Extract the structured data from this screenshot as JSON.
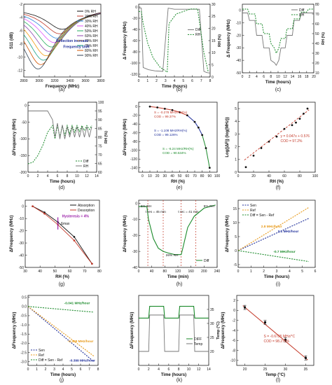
{
  "figure": {
    "panels": [
      {
        "id": "a",
        "label": "(a)"
      },
      {
        "id": "b",
        "label": "(b)"
      },
      {
        "id": "c",
        "label": "(c)"
      },
      {
        "id": "d",
        "label": "(d)"
      },
      {
        "id": "e",
        "label": "(e)"
      },
      {
        "id": "f",
        "label": "(f)"
      },
      {
        "id": "g",
        "label": "(g)"
      },
      {
        "id": "h",
        "label": "(h)"
      },
      {
        "id": "i",
        "label": "(i)"
      },
      {
        "id": "j",
        "label": "(j)"
      },
      {
        "id": "k",
        "label": "(k)"
      },
      {
        "id": "l",
        "label": "(l)"
      }
    ]
  },
  "colors": {
    "green": "#1a8a2a",
    "gray": "#777777",
    "blue": "#1f2f9a",
    "orange": "#e89a1a",
    "red": "#c43a2a",
    "purple": "#9a1fa8",
    "black": "#111111"
  },
  "chart_data": [
    {
      "id": "a",
      "type": "line",
      "xlabel": "Frequency (MHz)",
      "ylabel": "S11 (dB)",
      "xlim": [
        2800,
        3800
      ],
      "ylim": [
        -13,
        -2
      ],
      "xticks": [
        "2800",
        "3000",
        "3200",
        "3400",
        "3600",
        "3800"
      ],
      "yticks": [
        "-2",
        "-4",
        "-6",
        "-8",
        "-10",
        "-12"
      ],
      "legend": [
        "0% RH",
        "20% RH",
        "30% RH",
        "40% RH",
        "50% RH",
        "60% RH",
        "70% RH",
        "75% RH",
        "80% RH",
        "90% RH"
      ],
      "annotations": [
        "Reflection increase",
        "Frequency shift"
      ],
      "series_minima": [
        {
          "name": "0% RH",
          "x": 3300,
          "y": -5.8
        },
        {
          "name": "90% RH",
          "x": 2985,
          "y": -11.8
        }
      ]
    },
    {
      "id": "b",
      "type": "line",
      "xlabel": "Time (hours)",
      "ylabel": "Δ Frequency (MHz)",
      "y2label": "RH (%)",
      "xlim": [
        0,
        8
      ],
      "ylim": [
        -125,
        5
      ],
      "y2lim": [
        0,
        30
      ],
      "xticks": [
        "0",
        "1",
        "2",
        "3",
        "4",
        "5",
        "6",
        "7",
        "8"
      ],
      "yticks": [
        "0",
        "-20",
        "-40",
        "-60",
        "-80",
        "-100",
        "-120"
      ],
      "y2ticks": [
        "0",
        "5",
        "10",
        "15",
        "20",
        "25",
        "30"
      ],
      "legend": [
        "Diff",
        "RH"
      ],
      "series": [
        {
          "name": "Diff",
          "x": [
            0,
            0.3,
            0.5,
            1.1,
            1.8,
            2.7,
            3.3,
            4.0,
            4.6,
            5.4,
            6.2,
            6.8,
            7.3,
            7.6,
            8.0
          ],
          "y": [
            -2,
            -2,
            -108,
            -112,
            -114,
            -115,
            -2,
            -4,
            -4,
            -4,
            -4,
            -4,
            -115,
            -117,
            -118
          ]
        },
        {
          "name": "RH",
          "x": [
            0,
            0.3,
            0.5,
            1.0,
            1.6,
            2.4,
            3.2,
            3.4,
            4.2,
            5.0,
            5.8,
            6.6,
            7.3,
            7.8
          ],
          "y": [
            27,
            27,
            22,
            14,
            8,
            4,
            2,
            22,
            26,
            27,
            28,
            28,
            10,
            2
          ]
        }
      ]
    },
    {
      "id": "c",
      "type": "line",
      "xlabel": "Time (hours)",
      "ylabel": "Δ Frequency (MHz)",
      "y2label": "RH (%)",
      "xlim": [
        0,
        20
      ],
      "ylim": [
        -50,
        5
      ],
      "y2lim": [
        10,
        80
      ],
      "xticks": [
        "0",
        "2",
        "4",
        "6",
        "8",
        "10",
        "12",
        "14",
        "16",
        "18",
        "20"
      ],
      "yticks": [
        "0",
        "-10",
        "-20",
        "-30",
        "-40",
        "-50"
      ],
      "y2ticks": [
        "10",
        "20",
        "30",
        "40",
        "50",
        "60",
        "70",
        "80"
      ],
      "legend": [
        "Diff",
        "RH"
      ],
      "series": [
        {
          "name": "Diff",
          "x": [
            0,
            1.5,
            2,
            3.5,
            4,
            5.5,
            6,
            7.5,
            8,
            9,
            9.5,
            10.2,
            10.8,
            12,
            12.5,
            14,
            14.5,
            16,
            16.5,
            18,
            18.5,
            20
          ],
          "y": [
            -2,
            -2,
            -8,
            -8,
            -20,
            -20,
            -30,
            -30,
            -40,
            -42,
            -44,
            -40,
            -30,
            -30,
            -20,
            -20,
            -8,
            -8,
            -2,
            -2,
            -2,
            -2
          ]
        },
        {
          "name": "RH",
          "x": [
            0,
            1.5,
            2,
            3.5,
            4,
            5.5,
            6,
            7.5,
            8,
            9,
            9.5,
            10.2,
            10.8,
            12,
            12.5,
            14,
            14.5,
            16,
            16.5,
            18,
            18.5,
            20
          ],
          "y": [
            75,
            75,
            70,
            70,
            60,
            60,
            50,
            50,
            40,
            35,
            30,
            35,
            45,
            45,
            55,
            55,
            65,
            65,
            72,
            72,
            75,
            75
          ]
        }
      ]
    },
    {
      "id": "d",
      "type": "line",
      "xlabel": "Time (hours)",
      "ylabel": "ΔFrequency (MHz)",
      "y2label": "RH (%)",
      "xlim": [
        0,
        14
      ],
      "ylim": [
        -200,
        10
      ],
      "y2lim": [
        60,
        100
      ],
      "xticks": [
        "0",
        "2",
        "4",
        "6",
        "8",
        "10",
        "12",
        "14"
      ],
      "yticks": [
        "0",
        "-50",
        "-100",
        "-150",
        "-200"
      ],
      "y2ticks": [
        "60",
        "65",
        "70",
        "75",
        "80",
        "85",
        "90",
        "95",
        "100"
      ],
      "legend": [
        "Diff",
        "RH"
      ],
      "series": [
        {
          "name": "Diff",
          "x": [
            0,
            1,
            2,
            3,
            4,
            5,
            5.5,
            6,
            6.5,
            7,
            7.5,
            8,
            8.5,
            9,
            9.5,
            10,
            10.5,
            11,
            11.5,
            12,
            12.5,
            13
          ],
          "y": [
            -175,
            -170,
            -150,
            -120,
            -80,
            -60,
            -100,
            -60,
            -95,
            -60,
            -90,
            -60,
            -85,
            -60,
            -80,
            -60,
            -78,
            -60,
            -75,
            -60,
            -72,
            -60
          ]
        },
        {
          "name": "RH",
          "x": [
            0,
            1,
            2,
            3,
            4,
            5,
            5.5,
            6,
            6.5,
            7,
            7.5,
            8,
            8.5,
            9,
            9.5,
            10,
            10.5,
            11,
            11.5,
            12,
            12.5,
            13
          ],
          "y": [
            95,
            95,
            95,
            95,
            95,
            90,
            80,
            88,
            79,
            87,
            79,
            86,
            80,
            86,
            80,
            86,
            80,
            86,
            80,
            86,
            80,
            86
          ]
        }
      ]
    },
    {
      "id": "e",
      "type": "scatter",
      "xlabel": "RH (%)",
      "ylabel": "ΔFrequency (MHz)",
      "xlim": [
        -5,
        100
      ],
      "ylim": [
        -150,
        10
      ],
      "xticks": [
        "0",
        "10",
        "20",
        "30",
        "40",
        "50",
        "60",
        "70",
        "80",
        "90",
        "100"
      ],
      "yticks": [
        "0",
        "-20",
        "-40",
        "-60",
        "-80",
        "-100",
        "-120",
        "-140"
      ],
      "annotations": [
        "S = -0.278 MHz/RH(%)",
        "COD = 99.37%",
        "S = -1.108 MHz/RH(%)",
        "COD = 99.126%",
        "S = -6.24 MHz/RH(%)",
        "COD = 90.534%"
      ],
      "x": [
        10,
        20,
        30,
        40,
        50,
        60,
        70,
        75,
        80,
        85,
        90
      ],
      "y": [
        0,
        -2,
        -5,
        -8,
        -13,
        -20,
        -35,
        -48,
        -65,
        -95,
        -140
      ]
    },
    {
      "id": "f",
      "type": "scatter",
      "xlabel": "RH (%)",
      "ylabel": "Log(|ΔF|) (log(MHz))",
      "xlim": [
        0,
        100
      ],
      "ylim": [
        0,
        5.5
      ],
      "xticks": [
        "0",
        "20",
        "40",
        "60",
        "80",
        "100"
      ],
      "yticks": [
        "0",
        "1",
        "2",
        "3",
        "4",
        "5"
      ],
      "annotations": [
        "y = 0.047x + 0.576",
        "COD = 97.2%"
      ],
      "x": [
        10,
        20,
        30,
        40,
        50,
        60,
        70,
        75,
        80,
        85,
        90
      ],
      "y": [
        0.4,
        1.3,
        1.9,
        2.4,
        2.8,
        3.4,
        3.7,
        3.9,
        4.2,
        4.6,
        5.0
      ]
    },
    {
      "id": "g",
      "type": "line",
      "xlabel": "RH (%)",
      "ylabel": "ΔFrequency (MHz)",
      "xlim": [
        30,
        80
      ],
      "ylim": [
        -50,
        5
      ],
      "xticks": [
        "30",
        "40",
        "50",
        "60",
        "70",
        "80"
      ],
      "yticks": [
        "0",
        "-10",
        "-20",
        "-30",
        "-40",
        "-50"
      ],
      "legend": [
        "Absorption",
        "Desorption"
      ],
      "annotations": [
        "Δmax",
        "Hysteresis = 4%"
      ],
      "series": [
        {
          "name": "Absorption",
          "x": [
            35,
            43,
            52,
            63,
            75
          ],
          "y": [
            0,
            -5,
            -13,
            -25,
            -47
          ]
        },
        {
          "name": "Desorption",
          "x": [
            35,
            43,
            52,
            63,
            75
          ],
          "y": [
            0,
            -6,
            -15,
            -28,
            -47
          ]
        }
      ]
    },
    {
      "id": "h",
      "type": "line",
      "xlabel": "Time (min)",
      "ylabel": "ΔFrequency (MHz)",
      "xlim": [
        0,
        240
      ],
      "ylim": [
        -40,
        2
      ],
      "xticks": [
        "0",
        "40",
        "80",
        "120",
        "160",
        "200",
        "240"
      ],
      "yticks": [
        "0",
        "-10",
        "-20",
        "-30",
        "-40"
      ],
      "legend": [
        "Diff"
      ],
      "annotations": [
        "5% RH",
        "t res = 45 min",
        "26% RH",
        "t rec = 41 min",
        "5% RH"
      ],
      "x": [
        0,
        25,
        30,
        45,
        60,
        75,
        90,
        110,
        130,
        135,
        150,
        170,
        200,
        235
      ],
      "y": [
        -2,
        -2,
        -10,
        -22,
        -28,
        -30,
        -31,
        -32,
        -32,
        -28,
        -15,
        -8,
        -3,
        -1
      ]
    },
    {
      "id": "i",
      "type": "line",
      "xlabel": "Time (hours)",
      "ylabel": "ΔFrequency (MHz)",
      "xlim": [
        0,
        6
      ],
      "ylim": [
        -6,
        18
      ],
      "xticks": [
        "0",
        "1",
        "2",
        "3",
        "4",
        "5",
        "6"
      ],
      "yticks": [
        "-5",
        "0",
        "5",
        "10",
        "15"
      ],
      "legend": [
        "Sen",
        "Ref",
        "Diff = Sen - Ref"
      ],
      "annotations": [
        "2.8 MHz/hour",
        "2.1 MHz/hour",
        "-0.7 MHz/hour"
      ],
      "series": [
        {
          "name": "Sen",
          "x": [
            0,
            5.5
          ],
          "y": [
            0,
            11.5
          ]
        },
        {
          "name": "Ref",
          "x": [
            0,
            5.5
          ],
          "y": [
            0,
            15.4
          ]
        },
        {
          "name": "Diff = Sen - Ref",
          "x": [
            0,
            5.5
          ],
          "y": [
            0,
            -3.9
          ]
        }
      ]
    },
    {
      "id": "j",
      "type": "line",
      "xlabel": "Time (hours)",
      "ylabel": "ΔFrequency (MHz)",
      "xlim": [
        0,
        8
      ],
      "ylim": [
        -3.2,
        0.6
      ],
      "xticks": [
        "0",
        "1",
        "2",
        "3",
        "4",
        "5",
        "6",
        "7",
        "8"
      ],
      "yticks": [
        "0.5",
        "0.0",
        "-0.5",
        "-1.0",
        "-1.5",
        "-2.0",
        "-2.5",
        "-3.0"
      ],
      "legend": [
        "Sen",
        "Ref",
        "Diff = Sen - Ref"
      ],
      "annotations": [
        "-0.041 MHz/hour",
        "-0.358 MHz/hour",
        "-0.399 MHz/hour"
      ],
      "series": [
        {
          "name": "Sen",
          "x": [
            0,
            7.5
          ],
          "y": [
            0,
            -2.99
          ]
        },
        {
          "name": "Ref",
          "x": [
            0,
            7.5
          ],
          "y": [
            0,
            -2.69
          ]
        },
        {
          "name": "Diff = Sen - Ref",
          "x": [
            0,
            7.5
          ],
          "y": [
            0,
            -0.31
          ]
        }
      ]
    },
    {
      "id": "k",
      "type": "line",
      "xlabel": "Time (hours)",
      "ylabel": "ΔFrequency (MHz)",
      "y2label": "Temp (°C)",
      "xlim": [
        0,
        14
      ],
      "y2lim": [
        15,
        40
      ],
      "xticks": [
        "0",
        "2",
        "4",
        "6",
        "8",
        "10",
        "12",
        "14"
      ],
      "y2ticks": [
        "20",
        "25",
        "30",
        "35"
      ],
      "legend": [
        "DIFF",
        "Temp"
      ],
      "series": [
        {
          "name": "DIFF",
          "x": [
            0,
            2,
            2.2,
            5,
            5.2,
            8,
            8.2,
            11,
            11.2,
            14
          ],
          "y": [
            0.2,
            0.2,
            0.8,
            0.8,
            0.2,
            0.2,
            0.8,
            0.8,
            0.2,
            0.2
          ]
        },
        {
          "name": "Temp",
          "x": [
            0,
            2,
            2.2,
            5,
            5.2,
            8,
            8.2,
            11,
            11.2,
            14
          ],
          "y": [
            20,
            20,
            33,
            33,
            20,
            20,
            33,
            33,
            20,
            20
          ]
        }
      ]
    },
    {
      "id": "l",
      "type": "scatter",
      "xlabel": "Temp (°C)",
      "ylabel": "ΔFrequency (MHz)",
      "xlim": [
        18,
        37
      ],
      "ylim": [
        -11,
        3
      ],
      "xticks": [
        "20",
        "25",
        "30",
        "35"
      ],
      "yticks": [
        "2",
        "0",
        "-2",
        "-4",
        "-6",
        "-8",
        "-10"
      ],
      "annotations": [
        "S = -0.6725 MHz/°C",
        "COD = 98.275%"
      ],
      "x": [
        20,
        25,
        30,
        35
      ],
      "y": [
        0.6,
        -2.4,
        -5.9,
        -9.5
      ]
    }
  ]
}
